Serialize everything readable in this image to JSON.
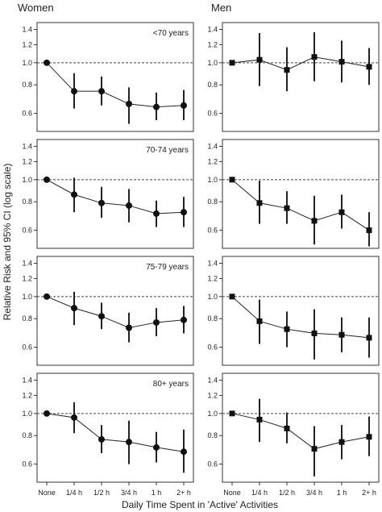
{
  "figure": {
    "column_titles": [
      "Women",
      "Men"
    ],
    "xlabel": "Daily Time Spent in 'Active' Activities",
    "ylabel": "Relative Risk and 95% CI (log scale)"
  },
  "chart_data": {
    "type": "line",
    "y_scale": "log",
    "ylim": [
      0.5,
      1.5
    ],
    "yticks": [
      0.6,
      0.8,
      1.0,
      1.2,
      1.4
    ],
    "ytick_labels": [
      "0.6",
      "0.8",
      "1.0",
      "1.2",
      "1.4"
    ],
    "categories": [
      "None",
      "1/4 h",
      "1/2 h",
      "3/4 h",
      "1 h",
      "2+ h"
    ],
    "reference_line": 1.0,
    "grid": false,
    "panels": [
      {
        "row": 0,
        "col": 0,
        "label": "<70 years",
        "marker": "circle",
        "values": [
          1.0,
          0.75,
          0.75,
          0.66,
          0.64,
          0.65
        ],
        "ci_low": [
          1.0,
          0.63,
          0.65,
          0.54,
          0.56,
          0.56
        ],
        "ci_high": [
          1.0,
          0.9,
          0.87,
          0.78,
          0.74,
          0.76
        ]
      },
      {
        "row": 0,
        "col": 1,
        "label": "",
        "marker": "square",
        "values": [
          1.0,
          1.03,
          0.93,
          1.06,
          1.01,
          0.96
        ],
        "ci_low": [
          1.0,
          0.79,
          0.75,
          0.83,
          0.82,
          0.8
        ],
        "ci_high": [
          1.0,
          1.35,
          1.17,
          1.36,
          1.25,
          1.16
        ]
      },
      {
        "row": 1,
        "col": 0,
        "label": "70-74 years",
        "marker": "circle",
        "values": [
          1.0,
          0.86,
          0.79,
          0.77,
          0.71,
          0.72
        ],
        "ci_low": [
          1.0,
          0.72,
          0.68,
          0.65,
          0.62,
          0.62
        ],
        "ci_high": [
          1.0,
          1.02,
          0.93,
          0.91,
          0.81,
          0.84
        ]
      },
      {
        "row": 1,
        "col": 1,
        "label": "",
        "marker": "square",
        "values": [
          1.0,
          0.79,
          0.75,
          0.66,
          0.72,
          0.6
        ],
        "ci_low": [
          1.0,
          0.64,
          0.64,
          0.52,
          0.61,
          0.51
        ],
        "ci_high": [
          1.0,
          0.99,
          0.89,
          0.85,
          0.86,
          0.72
        ]
      },
      {
        "row": 2,
        "col": 0,
        "label": "75-79 years",
        "marker": "circle",
        "values": [
          1.0,
          0.89,
          0.82,
          0.73,
          0.77,
          0.79
        ],
        "ci_low": [
          1.0,
          0.75,
          0.72,
          0.63,
          0.67,
          0.69
        ],
        "ci_high": [
          1.0,
          1.05,
          0.94,
          0.85,
          0.89,
          0.91
        ]
      },
      {
        "row": 2,
        "col": 1,
        "label": "",
        "marker": "square",
        "values": [
          1.0,
          0.78,
          0.72,
          0.69,
          0.68,
          0.66
        ],
        "ci_low": [
          1.0,
          0.62,
          0.6,
          0.53,
          0.57,
          0.54
        ],
        "ci_high": [
          1.0,
          0.97,
          0.86,
          0.88,
          0.81,
          0.81
        ]
      },
      {
        "row": 3,
        "col": 0,
        "label": "80+ years",
        "marker": "circle",
        "values": [
          1.0,
          0.96,
          0.77,
          0.75,
          0.71,
          0.68
        ],
        "ci_low": [
          1.0,
          0.82,
          0.67,
          0.6,
          0.61,
          0.55
        ],
        "ci_high": [
          1.0,
          1.12,
          0.89,
          0.93,
          0.83,
          0.85
        ]
      },
      {
        "row": 3,
        "col": 1,
        "label": "",
        "marker": "square",
        "values": [
          1.0,
          0.94,
          0.86,
          0.7,
          0.75,
          0.79
        ],
        "ci_low": [
          1.0,
          0.75,
          0.74,
          0.53,
          0.63,
          0.65
        ],
        "ci_high": [
          1.0,
          1.16,
          1.01,
          0.88,
          0.89,
          0.97
        ]
      }
    ]
  }
}
